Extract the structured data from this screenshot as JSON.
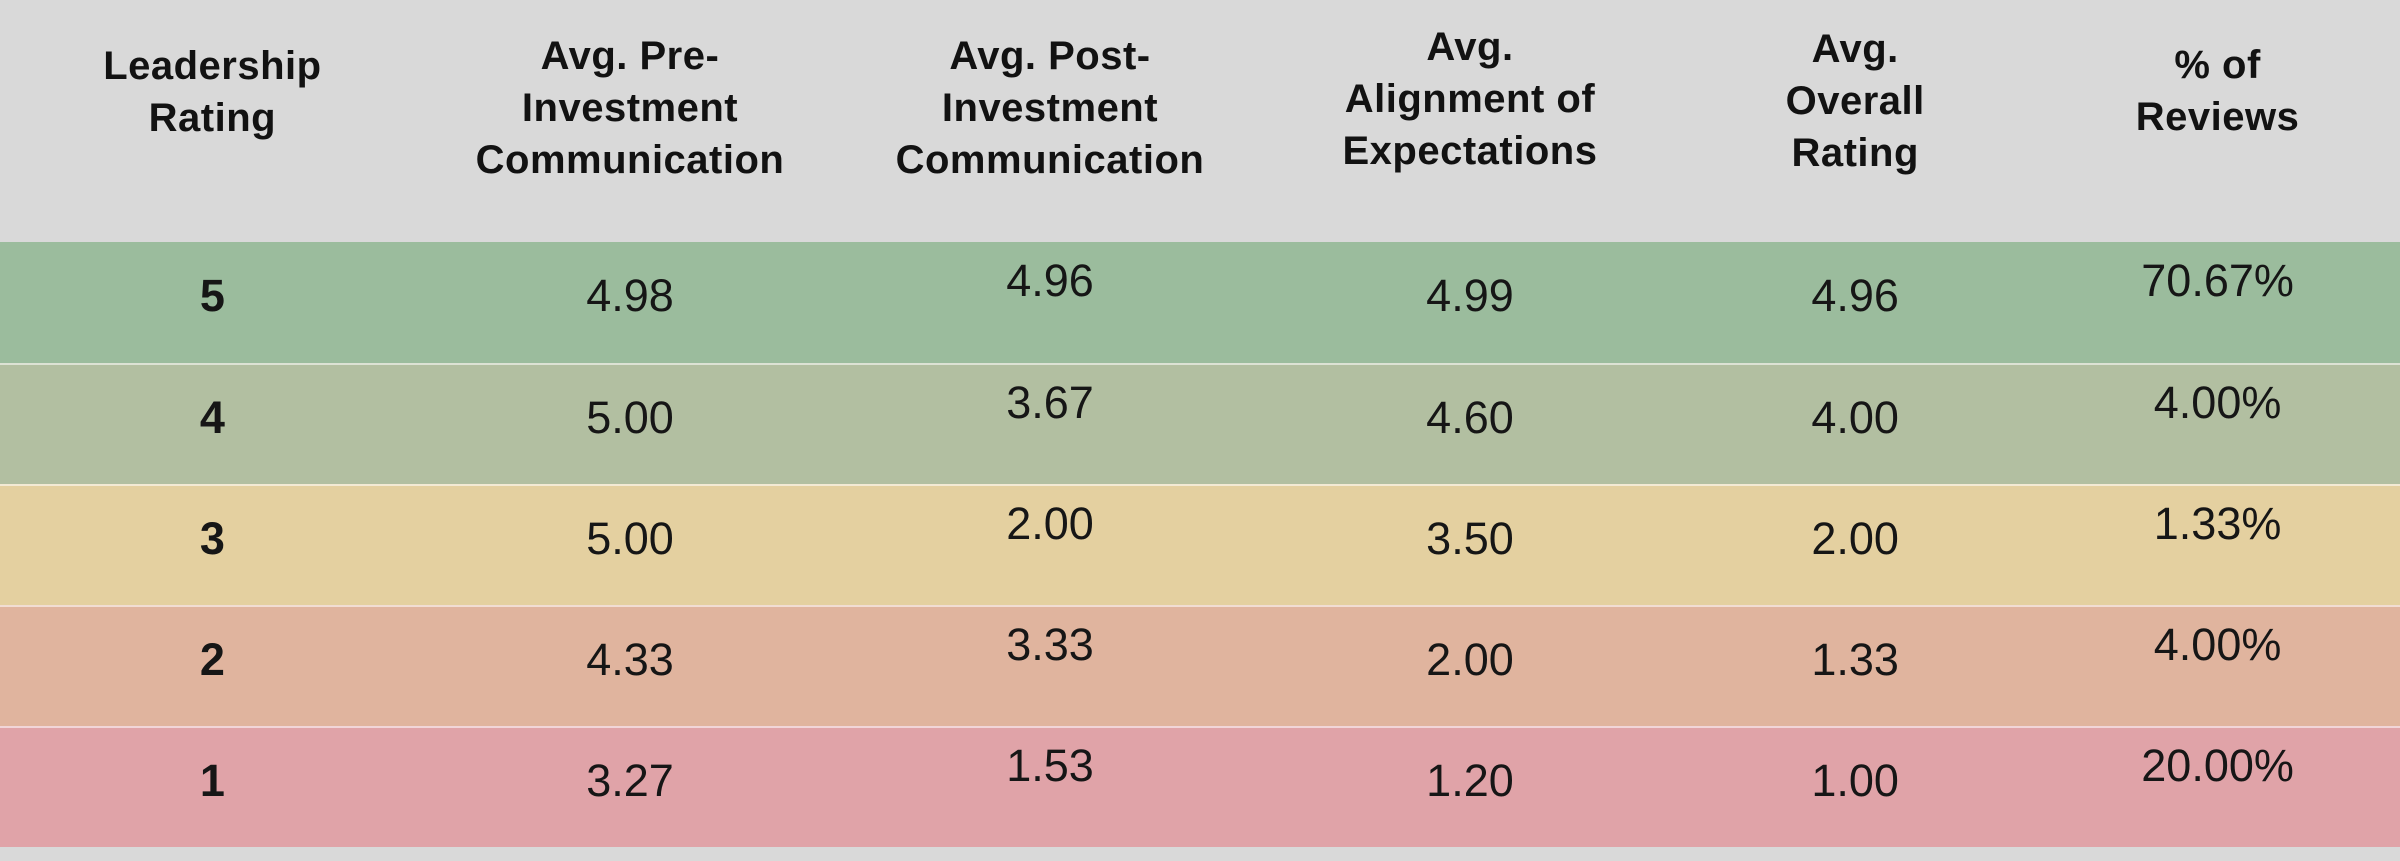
{
  "table": {
    "header": {
      "bg": "#d9d9d9",
      "columns": [
        {
          "label": [
            "Leadership",
            "Rating"
          ]
        },
        {
          "label": [
            "Avg. Pre-",
            "Investment",
            "Communication"
          ]
        },
        {
          "label": [
            "Avg. Post-",
            "Investment",
            "Communication"
          ]
        },
        {
          "label": [
            "Avg.",
            "Alignment of",
            "Expectations"
          ]
        },
        {
          "label": [
            "Avg.",
            "Overall",
            "Rating"
          ]
        },
        {
          "label": [
            "% of",
            "Reviews"
          ]
        }
      ]
    },
    "rows": [
      {
        "bg": "#9bbc9d",
        "cells": [
          "5",
          "4.98",
          "4.96",
          "4.99",
          "4.96",
          "70.67%"
        ]
      },
      {
        "bg": "#b2bfa1",
        "cells": [
          "4",
          "5.00",
          "3.67",
          "4.60",
          "4.00",
          "4.00%"
        ]
      },
      {
        "bg": "#e4d0a0",
        "cells": [
          "3",
          "5.00",
          "2.00",
          "3.50",
          "2.00",
          "1.33%"
        ]
      },
      {
        "bg": "#e0b49e",
        "cells": [
          "2",
          "4.33",
          "3.33",
          "2.00",
          "1.33",
          "4.00%"
        ]
      },
      {
        "bg": "#e0a3a8",
        "cells": [
          "1",
          "3.27",
          "1.53",
          "1.20",
          "1.00",
          "20.00%"
        ]
      }
    ],
    "footer": {
      "bg": "#d9d9d9"
    }
  },
  "colors": {
    "header_bg": "#d9d9d9",
    "row_5_bg": "#9bbc9d",
    "row_4_bg": "#b2bfa1",
    "row_3_bg": "#e4d0a0",
    "row_2_bg": "#e0b49e",
    "row_1_bg": "#e0a3a8",
    "separator": "rgba(255,255,255,0.55)",
    "text": "#161616"
  },
  "chart_data": {
    "type": "table",
    "title": "",
    "columns": [
      "Leadership Rating",
      "Avg. Pre-Investment Communication",
      "Avg. Post-Investment Communication",
      "Avg. Alignment of Expectations",
      "Avg. Overall Rating",
      "% of Reviews"
    ],
    "rows": [
      {
        "leadership_rating": 5,
        "avg_pre_investment_communication": 4.98,
        "avg_post_investment_communication": 4.96,
        "avg_alignment_of_expectations": 4.99,
        "avg_overall_rating": 4.96,
        "pct_of_reviews": 70.67
      },
      {
        "leadership_rating": 4,
        "avg_pre_investment_communication": 5.0,
        "avg_post_investment_communication": 3.67,
        "avg_alignment_of_expectations": 4.6,
        "avg_overall_rating": 4.0,
        "pct_of_reviews": 4.0
      },
      {
        "leadership_rating": 3,
        "avg_pre_investment_communication": 5.0,
        "avg_post_investment_communication": 2.0,
        "avg_alignment_of_expectations": 3.5,
        "avg_overall_rating": 2.0,
        "pct_of_reviews": 1.33
      },
      {
        "leadership_rating": 2,
        "avg_pre_investment_communication": 4.33,
        "avg_post_investment_communication": 3.33,
        "avg_alignment_of_expectations": 2.0,
        "avg_overall_rating": 1.33,
        "pct_of_reviews": 4.0
      },
      {
        "leadership_rating": 1,
        "avg_pre_investment_communication": 3.27,
        "avg_post_investment_communication": 1.53,
        "avg_alignment_of_expectations": 1.2,
        "avg_overall_rating": 1.0,
        "pct_of_reviews": 20.0
      }
    ],
    "layout_hints": {
      "row_color_coding": "green=high rating, yellow=middle, red=low rating",
      "grid": "horizontal light separators only, no vertical lines"
    }
  }
}
